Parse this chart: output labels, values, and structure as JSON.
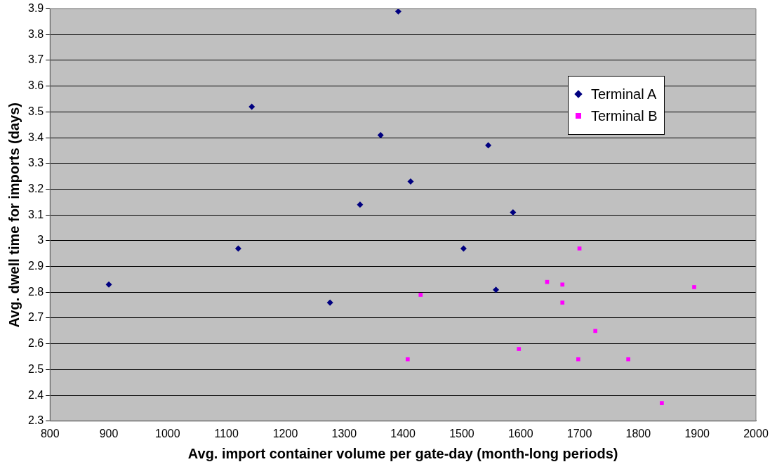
{
  "chart_data": {
    "type": "scatter",
    "xlabel": "Avg. import container volume per gate-day (month-long periods)",
    "ylabel": "Avg. dwell time for imports (days)",
    "xlim": [
      800,
      2000
    ],
    "xticks": [
      800,
      900,
      1000,
      1100,
      1200,
      1300,
      1400,
      1500,
      1600,
      1700,
      1800,
      1900,
      2000
    ],
    "ylim": [
      2.3,
      3.9
    ],
    "yticks": [
      2.3,
      2.4,
      2.5,
      2.6,
      2.7,
      2.8,
      2.9,
      3,
      3.1,
      3.2,
      3.3,
      3.4,
      3.5,
      3.6,
      3.7,
      3.8,
      3.9
    ],
    "grid": "y",
    "legend": "top right",
    "series": [
      {
        "name": "Terminal A",
        "color": "#000080",
        "marker": "diamond",
        "x": [
          900,
          1120,
          1143,
          1276,
          1327,
          1362,
          1392,
          1413,
          1503,
          1545,
          1558,
          1587
        ],
        "values": [
          2.83,
          2.97,
          3.52,
          2.76,
          3.14,
          3.41,
          3.89,
          3.23,
          2.97,
          3.37,
          2.81,
          3.11
        ]
      },
      {
        "name": "Terminal B",
        "color": "#ff00ff",
        "marker": "square",
        "x": [
          1408,
          1430,
          1597,
          1645,
          1671,
          1671,
          1698,
          1700,
          1727,
          1783,
          1840,
          1895
        ],
        "values": [
          2.54,
          2.79,
          2.58,
          2.84,
          2.83,
          2.76,
          2.54,
          2.97,
          2.65,
          2.54,
          2.37,
          2.82
        ]
      }
    ]
  }
}
